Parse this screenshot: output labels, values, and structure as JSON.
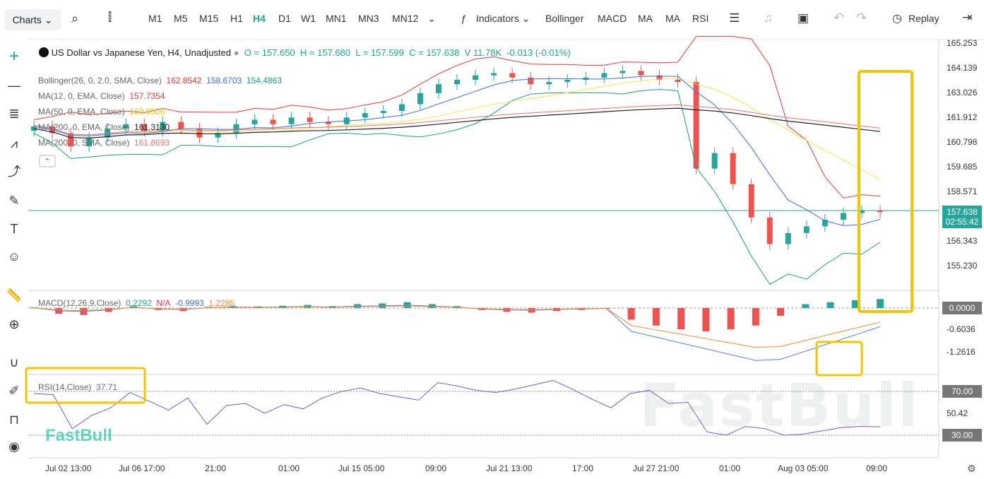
{
  "toolbar": {
    "charts_label": "Charts",
    "timeframes": [
      "M1",
      "M5",
      "M15",
      "H1",
      "H4",
      "D1",
      "W1",
      "MN1",
      "MN3",
      "MN12"
    ],
    "active_timeframe": "H4",
    "indicators_label": "Indicators",
    "indicator_shortcuts": [
      "Bollinger",
      "MACD",
      "MA",
      "MA",
      "RSI"
    ],
    "replay_label": "Replay"
  },
  "symbol_line": {
    "title": "US Dollar vs Japanese Yen, H4, Unadjusted",
    "open": "O = 157.650",
    "high": "H = 157.680",
    "low": "L = 157.599",
    "close": "C = 157.638",
    "volume": "V 11.78K",
    "change": "-0.013 (-0.01%)"
  },
  "legend": {
    "bollinger_name": "Bollinger(26, 0, 2.0, SMA, Close)",
    "bollinger_values": [
      "162.8542",
      "158.6703",
      "154.4863"
    ],
    "ma1_name": "MA(12, 0, EMA, Close)",
    "ma1_value": "157.7354",
    "ma2_name": "MA(50, 0, EMA, Close)",
    "ma2_value": "160.0506",
    "ma3_name": "MA(200, 0, EMA, Close)",
    "ma3_value": "161.3130",
    "ma4_name": "MA(200, 0, SMA, Close)",
    "ma4_value": "161.8693",
    "macd_name": "MACD(12,26,9,Close)",
    "macd_values": [
      "0.2292",
      "N/A",
      "-0.9993",
      "1.2285"
    ],
    "rsi_name": "RSI(14,Close)",
    "rsi_value": "37.71"
  },
  "colors": {
    "up": "#26a69a",
    "down": "#ef5350",
    "bb": "#e53935",
    "ma1": "#e53935",
    "ma2": "#fbe34a",
    "ma3": "#222222",
    "ma4": "#e57373",
    "macd": "#4f7fe0",
    "signal": "#f08a30",
    "rsi": "#7e57c2",
    "highlight": "#f5c400",
    "accent": "#1aa990"
  },
  "price_axis": [
    "165.253",
    "164.139",
    "163.026",
    "161.912",
    "160.798",
    "159.685",
    "158.571",
    "157.638",
    "156.343",
    "155.230"
  ],
  "current_price": "157.638",
  "countdown": "02:55:42",
  "macd_axis": [
    "0.0000",
    "-0.6036",
    "-1.2616"
  ],
  "rsi_axis": [
    "70.00",
    "50.42",
    "30.00"
  ],
  "time_axis": [
    "Jul 02 13:00",
    "Jul 06 17:00",
    "21:00",
    "01:00",
    "Jul 15 05:00",
    "09:00",
    "Jul 21 13:00",
    "17:00",
    "Jul 27 21:00",
    "01:00",
    "Aug 03 05:00",
    "09:00"
  ],
  "watermark": "FastBull",
  "logo": "FastBull",
  "chart_data": {
    "type": "candlestick",
    "title": "US Dollar vs Japanese Yen, H4, Unadjusted",
    "ylim": [
      154.3,
      165.6
    ],
    "close_series": [
      161.5,
      161.2,
      160.6,
      161.0,
      161.4,
      161.6,
      161.3,
      161.7,
      161.4,
      161.0,
      161.2,
      161.6,
      161.8,
      161.6,
      161.9,
      161.7,
      161.6,
      161.9,
      162.1,
      162.2,
      162.5,
      163.0,
      163.4,
      163.6,
      163.8,
      163.9,
      163.7,
      163.4,
      163.5,
      163.6,
      163.7,
      163.9,
      164.0,
      163.8,
      163.6,
      163.5,
      159.6,
      160.3,
      158.9,
      157.4,
      156.2,
      156.7,
      157.0,
      157.3,
      157.6,
      157.7,
      157.64
    ],
    "rsi_series": [
      68,
      67,
      36,
      48,
      55,
      69,
      61,
      53,
      64,
      40,
      57,
      59,
      50,
      58,
      54,
      64,
      70,
      73,
      68,
      65,
      62,
      78,
      75,
      71,
      69,
      72,
      76,
      80,
      72,
      63,
      55,
      68,
      71,
      59,
      60,
      33,
      30,
      38,
      36,
      30,
      31,
      34,
      37,
      38,
      37.71
    ],
    "rsi_levels": [
      70,
      30
    ],
    "macd_hist": [
      0.02,
      -0.15,
      -0.18,
      -0.1,
      0.05,
      -0.05,
      -0.08,
      0.03,
      0.05,
      0.04,
      0.06,
      0.08,
      0.05,
      0.1,
      0.12,
      0.15,
      0.1,
      0.05,
      -0.05,
      -0.1,
      -0.12,
      -0.08,
      -0.05,
      -0.02,
      -0.3,
      -0.45,
      -0.55,
      -0.6,
      -0.55,
      -0.45,
      -0.2,
      0.1,
      0.15,
      0.2,
      0.23
    ]
  }
}
